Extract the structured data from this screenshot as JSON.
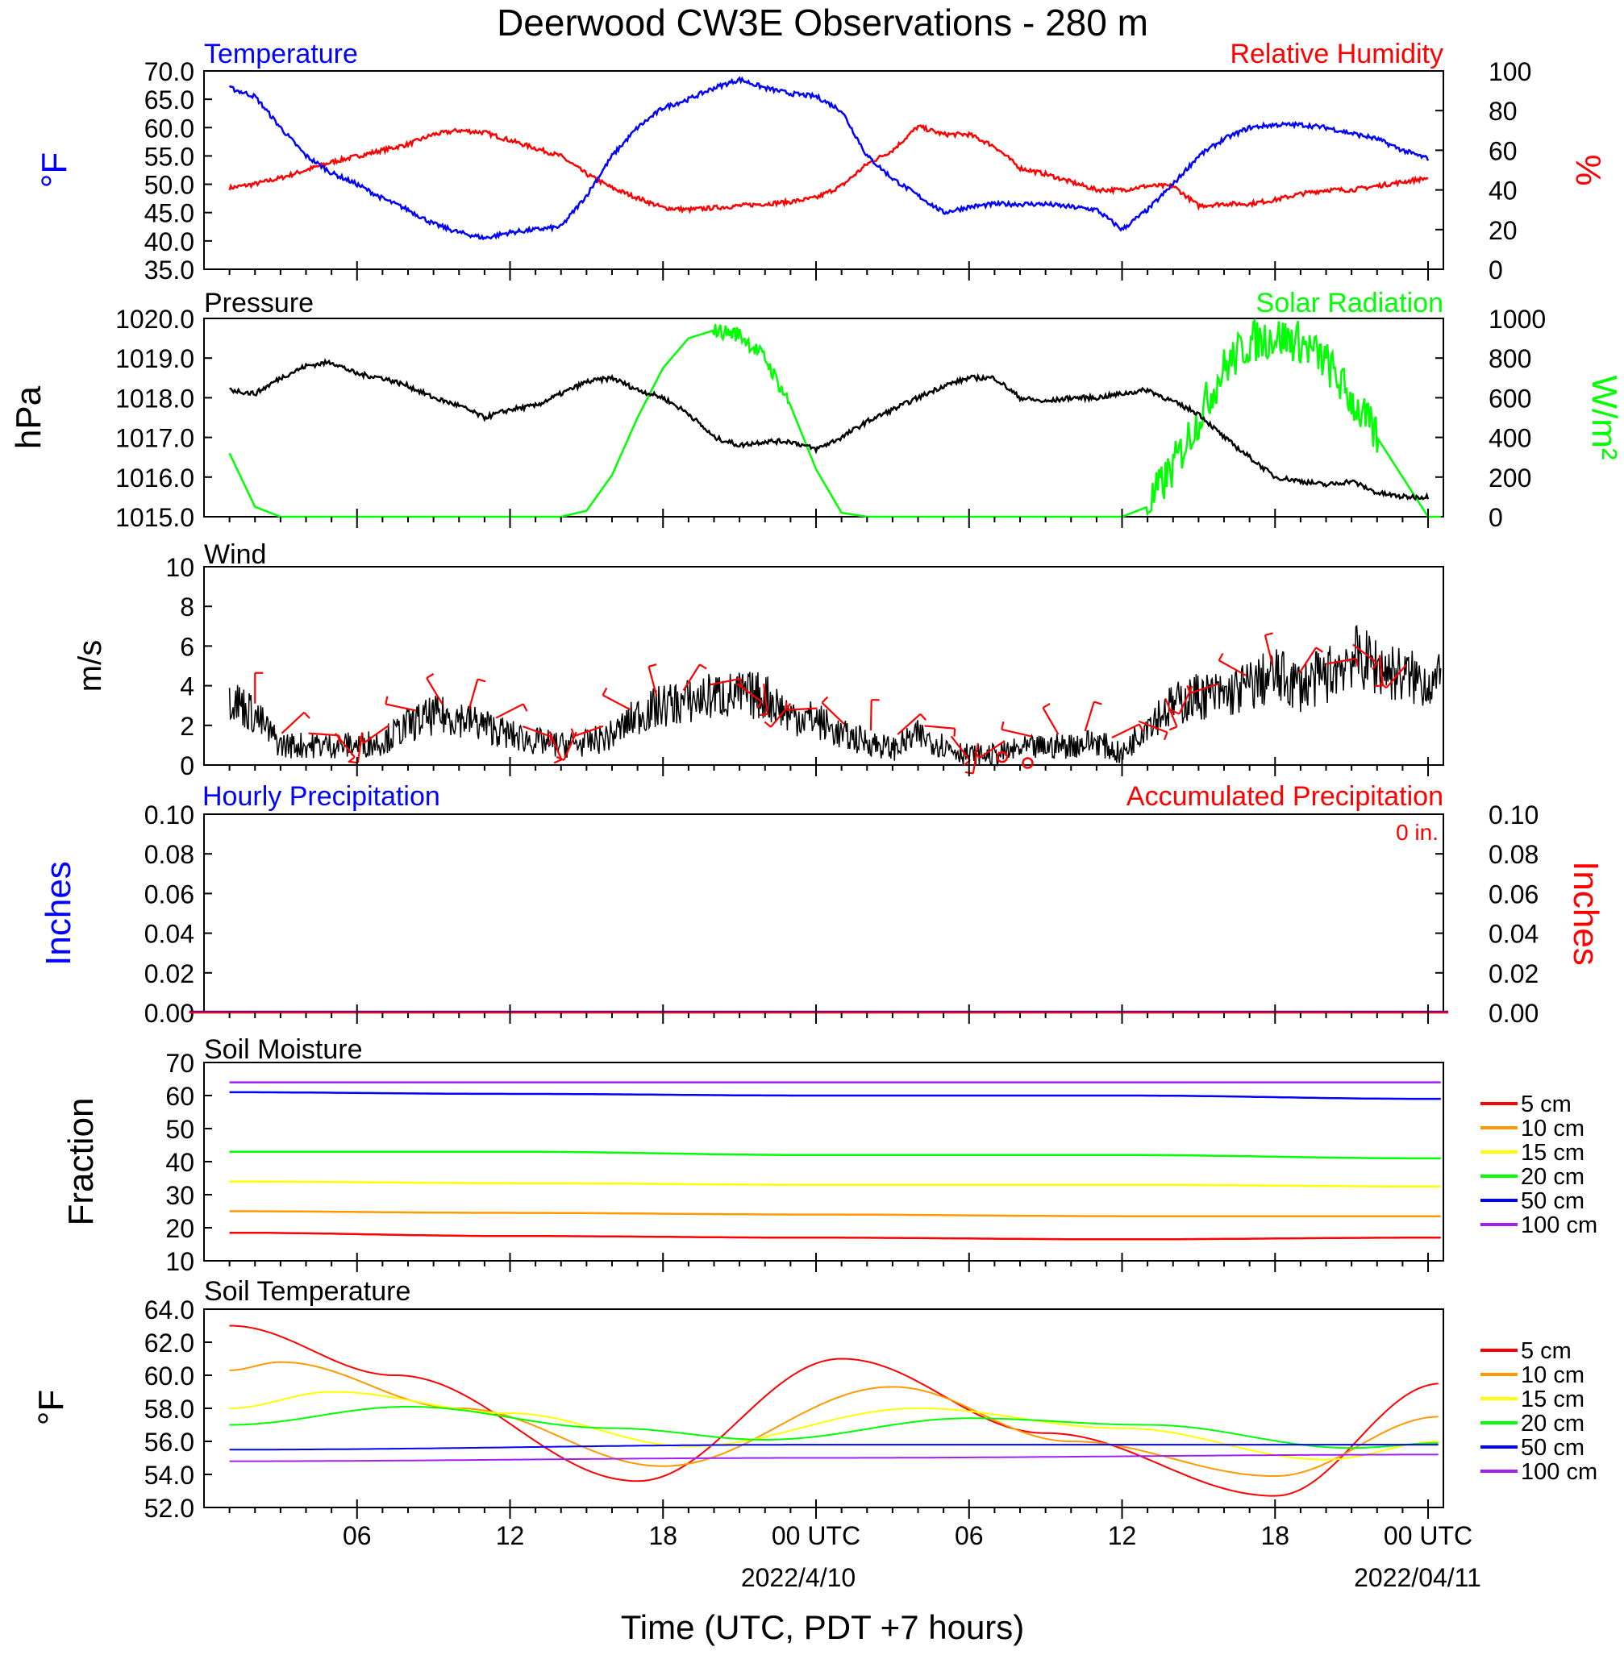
{
  "title": "Deerwood CW3E Observations - 280 m",
  "xaxis": {
    "label": "Time (UTC, PDT +7 hours)",
    "tick_labels": [
      "06",
      "12",
      "18",
      "00 UTC",
      "06",
      "12",
      "18",
      "00 UTC"
    ],
    "date_labels": [
      "2022/4/10",
      "2022/04/11"
    ]
  },
  "colors": {
    "blue": "#0000ff",
    "red": "#ff0000",
    "green": "#00ff00",
    "black": "#000000",
    "orange": "#ff9900",
    "yellow": "#ffff00",
    "purple": "#a020f0"
  },
  "panels": {
    "temp": {
      "left_title": "Temperature",
      "right_title": "Relative Humidity",
      "left_unit": "°F",
      "right_unit": "%",
      "left_ticks": [
        "70.0",
        "65.0",
        "60.0",
        "55.0",
        "50.0",
        "45.0",
        "40.0",
        "35.0"
      ],
      "right_ticks": [
        "100",
        "80",
        "60",
        "40",
        "20",
        "0"
      ]
    },
    "press": {
      "left_title": "Pressure",
      "right_title": "Solar Radiation",
      "left_unit": "hPa",
      "right_unit": "W/m²",
      "left_ticks": [
        "1020.0",
        "1019.0",
        "1018.0",
        "1017.0",
        "1016.0",
        "1015.0"
      ],
      "right_ticks": [
        "1000",
        "800",
        "600",
        "400",
        "200",
        "0"
      ]
    },
    "wind": {
      "left_title": "Wind",
      "left_unit": "m/s",
      "left_ticks": [
        "10",
        "8",
        "6",
        "4",
        "2",
        "0"
      ]
    },
    "precip": {
      "left_title": "Hourly Precipitation",
      "right_title": "Accumulated Precipitation",
      "accum_label": "0 in.",
      "left_unit": "Inches",
      "right_unit": "Inches",
      "left_ticks": [
        "0.10",
        "0.08",
        "0.06",
        "0.04",
        "0.02",
        "0.00"
      ],
      "right_ticks": [
        "0.10",
        "0.08",
        "0.06",
        "0.04",
        "0.02",
        "0.00"
      ]
    },
    "soilm": {
      "left_title": "Soil Moisture",
      "left_unit": "Fraction",
      "left_ticks": [
        "70",
        "60",
        "50",
        "40",
        "30",
        "20",
        "10"
      ]
    },
    "soilt": {
      "left_title": "Soil Temperature",
      "left_unit": "°F",
      "left_ticks": [
        "64.0",
        "62.0",
        "60.0",
        "58.0",
        "56.0",
        "54.0",
        "52.0"
      ]
    }
  },
  "legend": [
    "5 cm",
    "10 cm",
    "15 cm",
    "20 cm",
    "50 cm",
    "100 cm"
  ],
  "chart_data": [
    {
      "type": "line",
      "panel": "Temperature / Relative Humidity",
      "x": [
        1,
        2,
        3,
        4,
        5,
        6,
        7,
        8,
        9,
        10,
        11,
        12,
        13,
        14,
        15,
        16,
        17,
        18,
        19,
        20,
        21,
        22,
        23,
        24,
        25,
        26,
        27,
        28,
        29,
        30,
        31,
        32,
        33,
        34,
        35,
        36,
        37,
        38,
        39,
        40,
        41,
        42,
        43,
        44,
        45,
        46,
        47,
        48
      ],
      "series": [
        {
          "name": "Temperature",
          "axis": "left",
          "unit": "°F",
          "ylim": [
            35,
            70
          ],
          "values": [
            67.0,
            65.5,
            60.0,
            55.0,
            52.0,
            50.0,
            47.5,
            45.5,
            43.0,
            41.5,
            40.5,
            41.5,
            42.0,
            42.5,
            48.0,
            55.0,
            60.0,
            63.5,
            65.0,
            67.0,
            68.5,
            67.0,
            66.0,
            65.5,
            63.0,
            55.0,
            51.0,
            48.0,
            45.0,
            46.0,
            46.5,
            46.5,
            46.5,
            46.0,
            45.5,
            42.0,
            45.5,
            50.0,
            55.0,
            58.0,
            60.0,
            60.5,
            60.5,
            60.0,
            59.0,
            58.0,
            56.0,
            54.5
          ]
        },
        {
          "name": "Relative Humidity",
          "axis": "right",
          "unit": "%",
          "ylim": [
            0,
            100
          ],
          "values": [
            41,
            43,
            46,
            50,
            54,
            57,
            60,
            63,
            68,
            70,
            69,
            65,
            61,
            57,
            48,
            41,
            36,
            31,
            30,
            31,
            32,
            33,
            34,
            36,
            42,
            53,
            60,
            72,
            68,
            68,
            62,
            51,
            48,
            44,
            40,
            40,
            42,
            42,
            32,
            33,
            33,
            35,
            38,
            40,
            40,
            42,
            44,
            46
          ]
        }
      ]
    },
    {
      "type": "line",
      "panel": "Pressure / Solar Radiation",
      "x": [
        1,
        2,
        3,
        4,
        5,
        6,
        7,
        8,
        9,
        10,
        11,
        12,
        13,
        14,
        15,
        16,
        17,
        18,
        19,
        20,
        21,
        22,
        23,
        24,
        25,
        26,
        27,
        28,
        29,
        30,
        31,
        32,
        33,
        34,
        35,
        36,
        37,
        38,
        39,
        40,
        41,
        42,
        43,
        44,
        45,
        46,
        47,
        48
      ],
      "series": [
        {
          "name": "Pressure",
          "axis": "left",
          "unit": "hPa",
          "ylim": [
            1015,
            1020
          ],
          "values": [
            1018.2,
            1018.1,
            1018.5,
            1018.8,
            1018.9,
            1018.6,
            1018.5,
            1018.3,
            1018.0,
            1017.8,
            1017.5,
            1017.7,
            1017.8,
            1018.1,
            1018.4,
            1018.5,
            1018.2,
            1018.0,
            1017.6,
            1017.0,
            1016.8,
            1016.9,
            1016.9,
            1016.7,
            1017.0,
            1017.4,
            1017.7,
            1018.0,
            1018.3,
            1018.5,
            1018.5,
            1018.0,
            1017.9,
            1018.0,
            1018.0,
            1018.1,
            1018.2,
            1017.9,
            1017.6,
            1017.0,
            1016.5,
            1016.0,
            1015.9,
            1015.8,
            1015.9,
            1015.6,
            1015.5,
            1015.5
          ]
        },
        {
          "name": "Solar Radiation",
          "axis": "right",
          "unit": "W/m²",
          "ylim": [
            0,
            1000
          ],
          "values": [
            320,
            50,
            0,
            0,
            0,
            0,
            0,
            0,
            0,
            0,
            0,
            0,
            0,
            0,
            30,
            210,
            500,
            750,
            900,
            940,
            920,
            800,
            560,
            240,
            20,
            0,
            0,
            0,
            0,
            0,
            0,
            0,
            0,
            0,
            0,
            0,
            50,
            250,
            500,
            750,
            880,
            910,
            880,
            780,
            590,
            400,
            200,
            0
          ]
        }
      ]
    },
    {
      "type": "line",
      "panel": "Wind",
      "x": [
        1,
        2,
        3,
        4,
        5,
        6,
        7,
        8,
        9,
        10,
        11,
        12,
        13,
        14,
        15,
        16,
        17,
        18,
        19,
        20,
        21,
        22,
        23,
        24,
        25,
        26,
        27,
        28,
        29,
        30,
        31,
        32,
        33,
        34,
        35,
        36,
        37,
        38,
        39,
        40,
        41,
        42,
        43,
        44,
        45,
        46,
        47,
        48
      ],
      "series": [
        {
          "name": "Wind",
          "unit": "m/s",
          "ylim": [
            0,
            10
          ],
          "values": [
            3.5,
            2.5,
            1.0,
            1.0,
            1.0,
            1.0,
            1.2,
            2.0,
            2.5,
            2.4,
            2.0,
            1.5,
            1.2,
            1.0,
            1.1,
            1.5,
            2.5,
            3.0,
            3.2,
            3.5,
            3.5,
            3.5,
            2.5,
            2.3,
            1.5,
            1.2,
            0.8,
            1.5,
            1.0,
            0.5,
            0.5,
            0.8,
            0.9,
            1.0,
            1.2,
            0.5,
            2.2,
            3.0,
            3.5,
            3.5,
            4.0,
            4.5,
            4.0,
            4.5,
            5.5,
            5.0,
            4.5,
            4.2
          ]
        }
      ]
    },
    {
      "type": "line",
      "panel": "Precipitation",
      "x": [
        1,
        48
      ],
      "series": [
        {
          "name": "Hourly Precipitation",
          "axis": "left",
          "unit": "Inches",
          "ylim": [
            0,
            0.1
          ],
          "values": [
            0.0,
            0.0
          ]
        },
        {
          "name": "Accumulated Precipitation",
          "axis": "right",
          "unit": "Inches",
          "ylim": [
            0,
            0.1
          ],
          "values": [
            0.0,
            0.0
          ]
        }
      ]
    },
    {
      "type": "line",
      "panel": "Soil Moisture",
      "x": [
        1,
        12,
        24,
        36,
        48
      ],
      "ylim": [
        10,
        70
      ],
      "series": [
        {
          "name": "5 cm",
          "values": [
            18.5,
            17.5,
            17.0,
            16.5,
            17.0
          ]
        },
        {
          "name": "10 cm",
          "values": [
            25.0,
            24.5,
            24.0,
            23.5,
            23.5
          ]
        },
        {
          "name": "15 cm",
          "values": [
            34.0,
            33.5,
            33.0,
            33.0,
            32.5
          ]
        },
        {
          "name": "20 cm",
          "values": [
            43.0,
            43.0,
            42.0,
            42.0,
            41.0
          ]
        },
        {
          "name": "50 cm",
          "values": [
            61.0,
            60.5,
            60.0,
            60.0,
            59.0
          ]
        },
        {
          "name": "100 cm",
          "values": [
            64.0,
            64.0,
            64.0,
            64.0,
            64.0
          ]
        }
      ]
    },
    {
      "type": "line",
      "panel": "Soil Temperature",
      "ylim": [
        52,
        64
      ],
      "series": [
        {
          "name": "5 cm",
          "x": [
            1,
            7.5,
            17,
            25,
            33,
            42,
            48.5
          ],
          "values": [
            63.0,
            60.0,
            53.6,
            61.0,
            56.5,
            52.7,
            59.5
          ]
        },
        {
          "name": "10 cm",
          "x": [
            1,
            3,
            10,
            18,
            27,
            34,
            42,
            48.5
          ],
          "values": [
            60.3,
            60.8,
            58.0,
            54.5,
            59.3,
            56.0,
            53.9,
            57.5
          ]
        },
        {
          "name": "15 cm",
          "x": [
            1,
            5,
            12,
            19,
            28,
            36,
            44,
            48.5
          ],
          "values": [
            58.0,
            59.0,
            57.7,
            55.7,
            58.0,
            56.8,
            54.9,
            56.0
          ]
        },
        {
          "name": "20 cm",
          "x": [
            1,
            8,
            16,
            22,
            30,
            37,
            45,
            48.5
          ],
          "values": [
            57.0,
            58.1,
            56.8,
            56.1,
            57.4,
            57.0,
            55.6,
            55.9
          ]
        },
        {
          "name": "50 cm",
          "x": [
            1,
            24,
            48.5
          ],
          "values": [
            55.5,
            55.8,
            55.8
          ]
        },
        {
          "name": "100 cm",
          "x": [
            1,
            24,
            48.5
          ],
          "values": [
            54.8,
            55.0,
            55.2
          ]
        }
      ]
    }
  ]
}
